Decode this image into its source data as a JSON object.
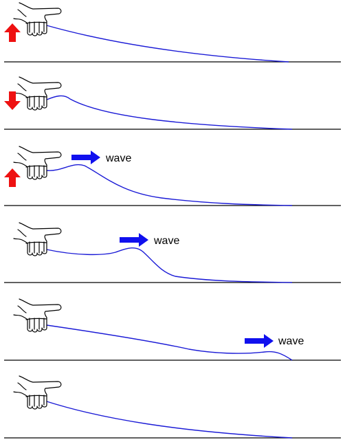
{
  "wave_label": "wave",
  "colors": {
    "rope": "#1a1ad6",
    "motion_arrow": "#ee1111",
    "wave_arrow": "#1010ee",
    "ground": "#000000",
    "hand_outline": "#000000"
  },
  "panels": [
    {
      "hand_motion": "up",
      "wave_label_shown": false
    },
    {
      "hand_motion": "down",
      "wave_label_shown": false
    },
    {
      "hand_motion": "up",
      "wave_label_shown": true
    },
    {
      "hand_motion": "none",
      "wave_label_shown": true
    },
    {
      "hand_motion": "none",
      "wave_label_shown": true
    },
    {
      "hand_motion": "none",
      "wave_label_shown": false
    }
  ]
}
